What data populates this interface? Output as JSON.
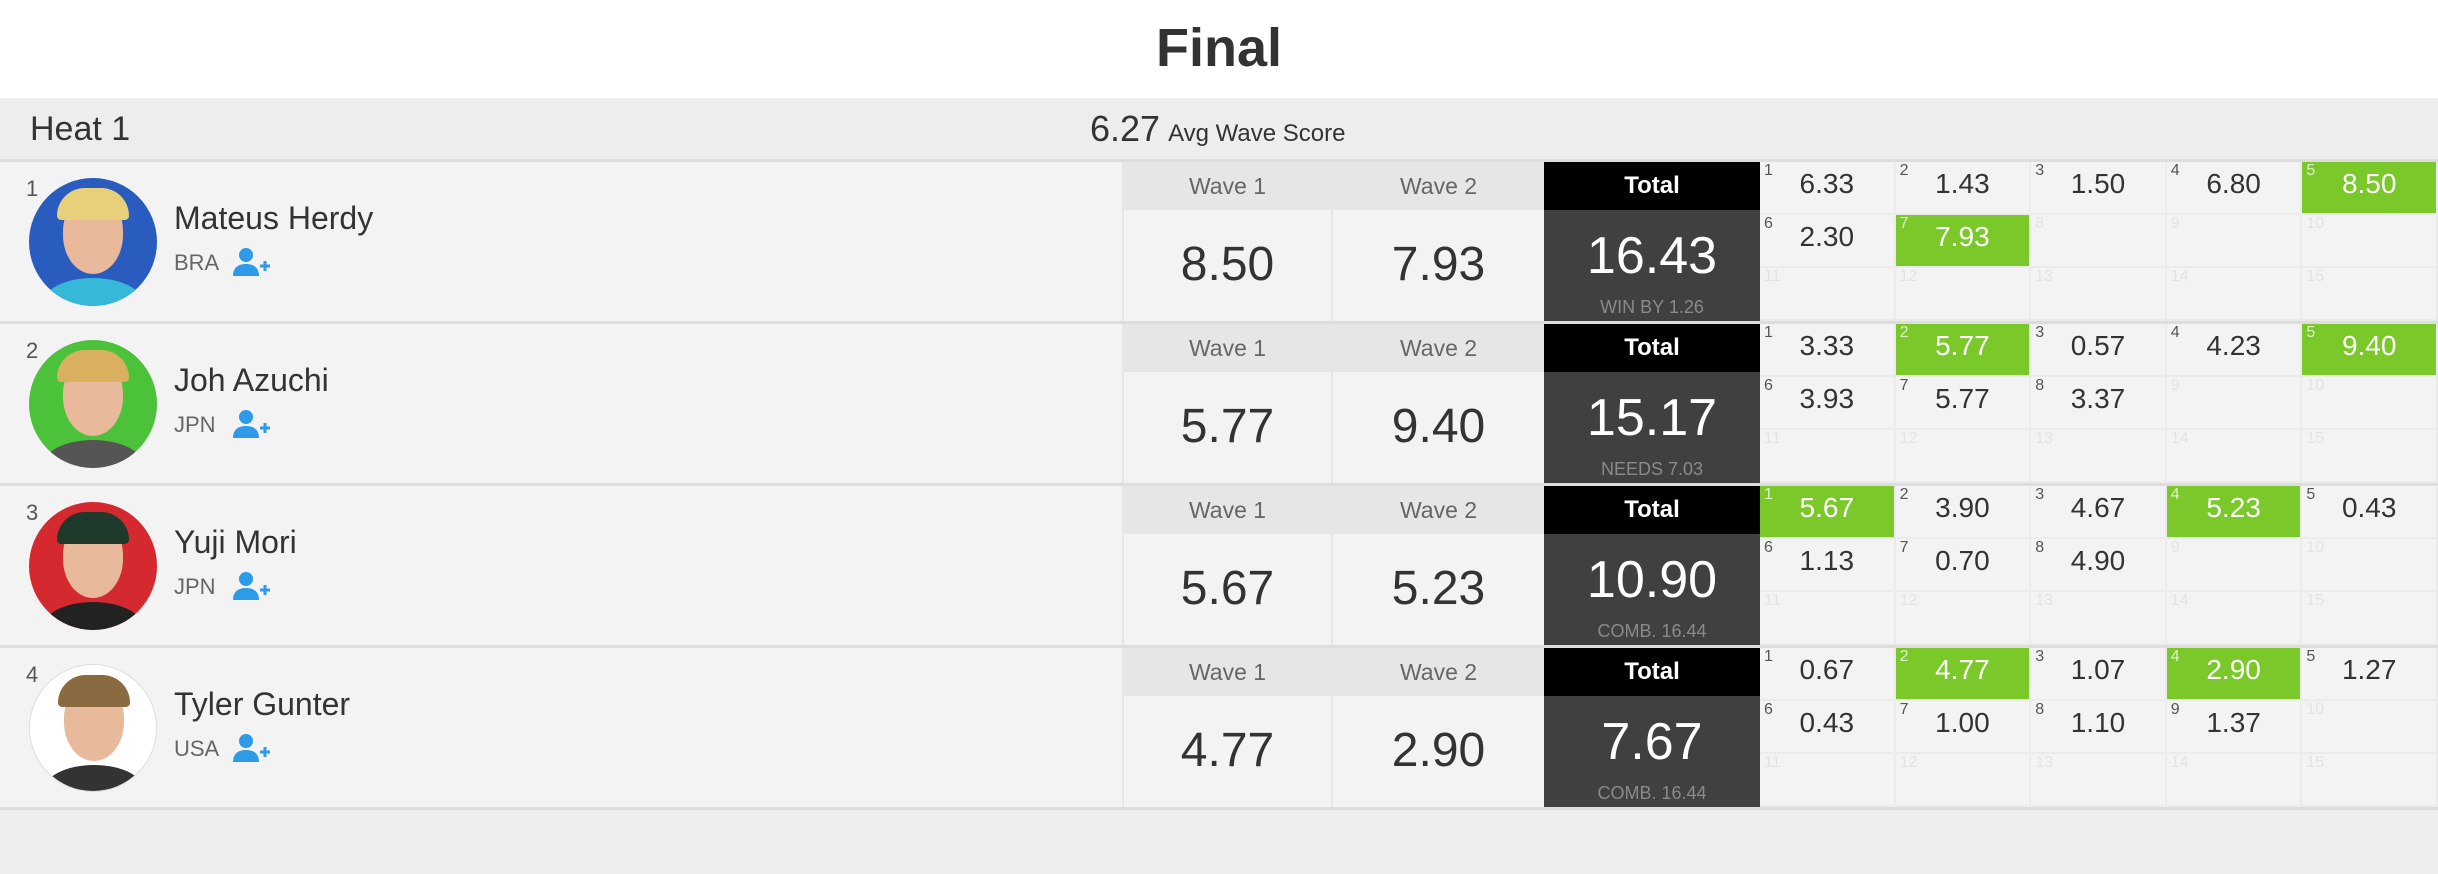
{
  "title": "Final",
  "heat": {
    "name": "Heat 1",
    "avg_score": "6.27",
    "avg_label": "Avg Wave Score"
  },
  "labels": {
    "wave1": "Wave 1",
    "wave2": "Wave 2",
    "total": "Total"
  },
  "colors": {
    "best_wave": "#7ac829",
    "total_header": "#000000",
    "total_body": "#404040"
  },
  "surfers": [
    {
      "rank": "1",
      "name": "Mateus Herdy",
      "country": "BRA",
      "avatar_bg": "#2a5cbf",
      "hair": "#e8d07a",
      "shirt": "#36b8d8",
      "wave1": "8.50",
      "wave2": "7.93",
      "total": "16.43",
      "note": "WIN BY 1.26",
      "waves": [
        {
          "n": "1",
          "s": "6.33"
        },
        {
          "n": "2",
          "s": "1.43"
        },
        {
          "n": "3",
          "s": "1.50"
        },
        {
          "n": "4",
          "s": "6.80"
        },
        {
          "n": "5",
          "s": "8.50",
          "best": true
        },
        {
          "n": "6",
          "s": "2.30"
        },
        {
          "n": "7",
          "s": "7.93",
          "best": true
        },
        {
          "n": "8"
        },
        {
          "n": "9"
        },
        {
          "n": "10"
        },
        {
          "n": "11"
        },
        {
          "n": "12"
        },
        {
          "n": "13"
        },
        {
          "n": "14"
        },
        {
          "n": "15"
        }
      ]
    },
    {
      "rank": "2",
      "name": "Joh Azuchi",
      "country": "JPN",
      "avatar_bg": "#4cc13a",
      "hair": "#d8b060",
      "shirt": "#555555",
      "wave1": "5.77",
      "wave2": "9.40",
      "total": "15.17",
      "note": "NEEDS 7.03",
      "waves": [
        {
          "n": "1",
          "s": "3.33"
        },
        {
          "n": "2",
          "s": "5.77",
          "best": true
        },
        {
          "n": "3",
          "s": "0.57"
        },
        {
          "n": "4",
          "s": "4.23"
        },
        {
          "n": "5",
          "s": "9.40",
          "best": true
        },
        {
          "n": "6",
          "s": "3.93"
        },
        {
          "n": "7",
          "s": "5.77"
        },
        {
          "n": "8",
          "s": "3.37"
        },
        {
          "n": "9"
        },
        {
          "n": "10"
        },
        {
          "n": "11"
        },
        {
          "n": "12"
        },
        {
          "n": "13"
        },
        {
          "n": "14"
        },
        {
          "n": "15"
        }
      ]
    },
    {
      "rank": "3",
      "name": "Yuji Mori",
      "country": "JPN",
      "avatar_bg": "#d42a2f",
      "hair": "#1f3a2a",
      "shirt": "#222222",
      "wave1": "5.67",
      "wave2": "5.23",
      "total": "10.90",
      "note": "COMB. 16.44",
      "waves": [
        {
          "n": "1",
          "s": "5.67",
          "best": true
        },
        {
          "n": "2",
          "s": "3.90"
        },
        {
          "n": "3",
          "s": "4.67"
        },
        {
          "n": "4",
          "s": "5.23",
          "best": true
        },
        {
          "n": "5",
          "s": "0.43"
        },
        {
          "n": "6",
          "s": "1.13"
        },
        {
          "n": "7",
          "s": "0.70"
        },
        {
          "n": "8",
          "s": "4.90"
        },
        {
          "n": "9"
        },
        {
          "n": "10"
        },
        {
          "n": "11"
        },
        {
          "n": "12"
        },
        {
          "n": "13"
        },
        {
          "n": "14"
        },
        {
          "n": "15"
        }
      ]
    },
    {
      "rank": "4",
      "name": "Tyler Gunter",
      "country": "USA",
      "avatar_bg": "#ffffff",
      "hair": "#8a6a40",
      "shirt": "#333333",
      "wave1": "4.77",
      "wave2": "2.90",
      "total": "7.67",
      "note": "COMB. 16.44",
      "waves": [
        {
          "n": "1",
          "s": "0.67"
        },
        {
          "n": "2",
          "s": "4.77",
          "best": true
        },
        {
          "n": "3",
          "s": "1.07"
        },
        {
          "n": "4",
          "s": "2.90",
          "best": true
        },
        {
          "n": "5",
          "s": "1.27"
        },
        {
          "n": "6",
          "s": "0.43"
        },
        {
          "n": "7",
          "s": "1.00"
        },
        {
          "n": "8",
          "s": "1.10"
        },
        {
          "n": "9",
          "s": "1.37"
        },
        {
          "n": "10"
        },
        {
          "n": "11"
        },
        {
          "n": "12"
        },
        {
          "n": "13"
        },
        {
          "n": "14"
        },
        {
          "n": "15"
        }
      ]
    }
  ]
}
